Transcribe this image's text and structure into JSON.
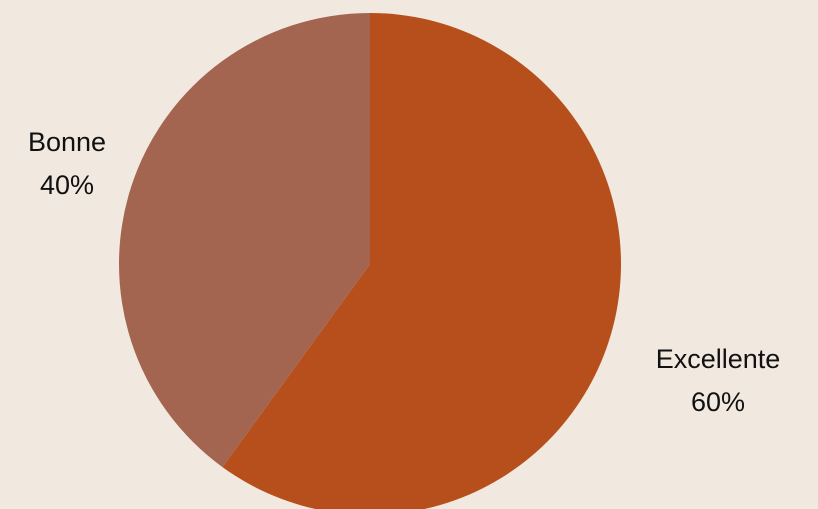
{
  "chart_data": {
    "type": "pie",
    "title": "",
    "categories": [
      "Excellente",
      "Bonne"
    ],
    "values": [
      60,
      40
    ],
    "labels": [
      {
        "name": "Excellente",
        "percent": "60%"
      },
      {
        "name": "Bonne",
        "percent": "40%"
      }
    ],
    "colors": [
      "#b64f1c",
      "#a3654f"
    ],
    "start_direction": "top",
    "direction": "clockwise",
    "legend": "none"
  },
  "background_color": "#f1e9e0"
}
